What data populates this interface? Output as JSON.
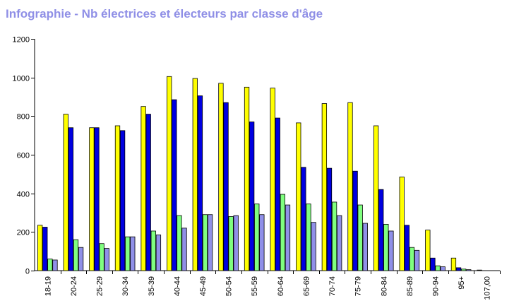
{
  "title": "Infographie - Nb électrices et électeurs par classe d'âge",
  "chart_data": {
    "type": "bar",
    "title": "Infographie - Nb électrices et électeurs par classe d'âge",
    "xlabel": "",
    "ylabel": "",
    "ylim": [
      0,
      1200
    ],
    "yticks": [
      "0",
      "200",
      "400",
      "600",
      "800",
      "1000",
      "1200"
    ],
    "grid": false,
    "legend": "none",
    "categories": [
      "18-19",
      "20-24",
      "25-29",
      "30-34",
      "35-39",
      "40-44",
      "45-49",
      "50-54",
      "55-59",
      "60-64",
      "65-69",
      "70-74",
      "75-79",
      "80-84",
      "85-89",
      "90-94",
      "95+",
      "107,00"
    ],
    "series": [
      {
        "color": "#ffff00",
        "values": [
          235,
          810,
          740,
          750,
          850,
          1005,
          995,
          970,
          950,
          945,
          765,
          865,
          870,
          750,
          485,
          210,
          65,
          3
        ]
      },
      {
        "color": "#0000e0",
        "values": [
          225,
          740,
          740,
          725,
          810,
          885,
          905,
          870,
          770,
          790,
          535,
          530,
          515,
          420,
          235,
          65,
          15,
          0
        ]
      },
      {
        "color": "#80ff80",
        "values": [
          60,
          160,
          140,
          175,
          205,
          285,
          290,
          280,
          345,
          395,
          345,
          355,
          340,
          240,
          120,
          25,
          8,
          0
        ]
      },
      {
        "color": "#9090e8",
        "values": [
          55,
          120,
          115,
          175,
          185,
          220,
          290,
          285,
          290,
          340,
          250,
          285,
          245,
          205,
          105,
          20,
          5,
          0
        ]
      }
    ]
  }
}
